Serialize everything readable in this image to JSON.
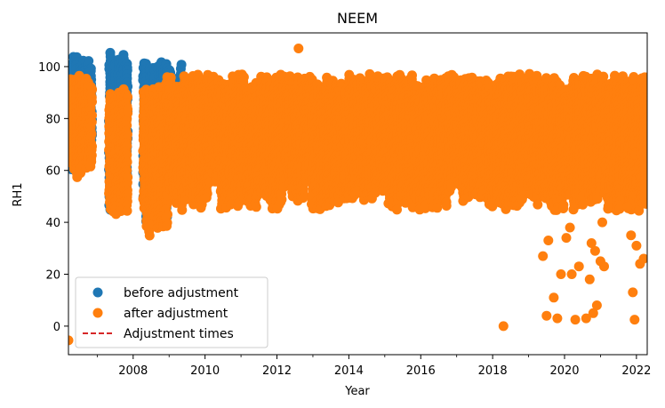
{
  "chart_data": {
    "type": "scatter",
    "title": "NEEM",
    "xlabel": "Year",
    "ylabel": "RH1",
    "xlim": [
      2006.2,
      2022.3
    ],
    "ylim": [
      -11,
      113
    ],
    "x_ticks": [
      2008,
      2010,
      2012,
      2014,
      2016,
      2018,
      2020,
      2022
    ],
    "x_minor_ticks": [
      2007,
      2009,
      2011,
      2013,
      2015,
      2017,
      2019,
      2021
    ],
    "y_ticks": [
      0,
      20,
      40,
      60,
      80,
      100
    ],
    "grid": false,
    "legend": {
      "placement": "lower-left",
      "entries": [
        {
          "label": "before adjustment",
          "marker": "circle",
          "color": "#1f77b4"
        },
        {
          "label": "after adjustment",
          "marker": "circle",
          "color": "#ff7f0e"
        },
        {
          "label": "Adjustment times",
          "marker": "dashed-line",
          "color": "#d62728"
        }
      ]
    },
    "series": [
      {
        "name": "before adjustment",
        "color": "#1f77b4",
        "bands": [
          {
            "x": [
              2006.2,
              2006.85
            ],
            "y": [
              59,
              104
            ]
          },
          {
            "x": [
              2007.35,
              2007.9
            ],
            "y": [
              45,
              106
            ]
          },
          {
            "x": [
              2008.3,
              2008.95
            ],
            "y": [
              38,
              104
            ]
          },
          {
            "x": [
              2008.95,
              2009.35
            ],
            "y": [
              60,
              101
            ]
          }
        ]
      },
      {
        "name": "after adjustment",
        "color": "#ff7f0e",
        "bands": [
          {
            "x": [
              2006.2,
              2006.85
            ],
            "y": [
              57,
              97
            ]
          },
          {
            "x": [
              2007.35,
              2007.9
            ],
            "y": [
              42,
              92
            ]
          },
          {
            "x": [
              2008.3,
              2008.95
            ],
            "y": [
              34,
              93
            ]
          },
          {
            "x": [
              2008.95,
              2022.3
            ],
            "y": [
              44,
              97
            ]
          },
          {
            "x": [
              2021.9,
              2022.3
            ],
            "y": [
              60,
              100
            ]
          }
        ],
        "points": [
          [
            2006.2,
            -5.5
          ],
          [
            2012.6,
            107
          ],
          [
            2018.3,
            0
          ],
          [
            2019.4,
            27
          ],
          [
            2019.5,
            4
          ],
          [
            2019.55,
            33
          ],
          [
            2019.7,
            11
          ],
          [
            2019.8,
            3
          ],
          [
            2019.9,
            20
          ],
          [
            2020.05,
            34
          ],
          [
            2020.15,
            38
          ],
          [
            2020.2,
            20
          ],
          [
            2020.3,
            2.5
          ],
          [
            2020.4,
            23
          ],
          [
            2020.6,
            3
          ],
          [
            2020.7,
            18
          ],
          [
            2020.75,
            32
          ],
          [
            2020.8,
            5
          ],
          [
            2020.85,
            29
          ],
          [
            2020.9,
            8
          ],
          [
            2021.0,
            25
          ],
          [
            2021.05,
            40
          ],
          [
            2021.1,
            23
          ],
          [
            2021.75,
            46
          ],
          [
            2021.85,
            35
          ],
          [
            2021.9,
            13
          ],
          [
            2021.95,
            2.5
          ],
          [
            2022.0,
            31
          ],
          [
            2022.1,
            24
          ],
          [
            2022.2,
            26
          ]
        ]
      }
    ]
  }
}
